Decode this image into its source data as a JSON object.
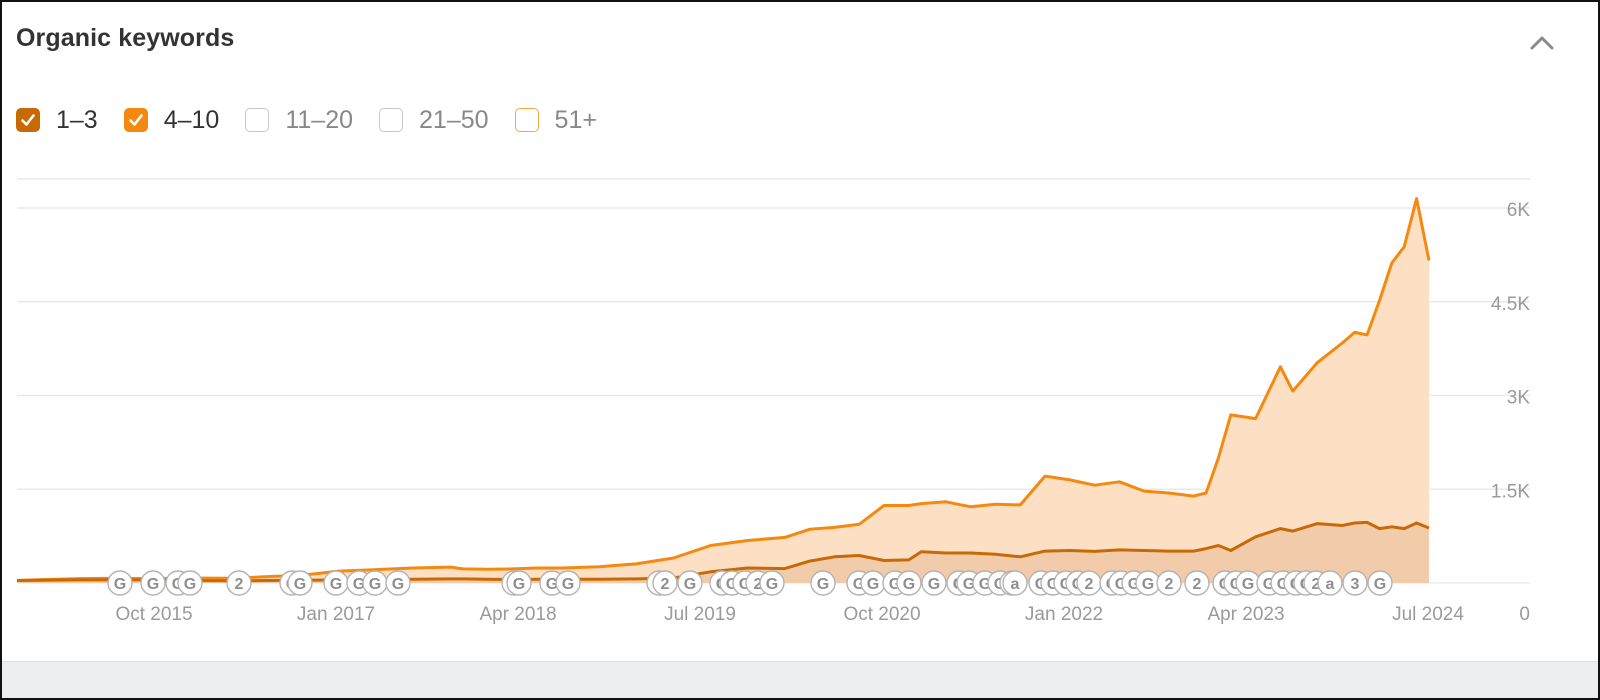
{
  "header": {
    "title": "Organic keywords"
  },
  "icons": {
    "collapse": "chevron-up-icon",
    "check": "check-icon"
  },
  "filters": [
    {
      "label": "1–3",
      "checked": true,
      "color": "#c76a06",
      "label_color": "#333333"
    },
    {
      "label": "4–10",
      "checked": true,
      "color": "#f5890f",
      "label_color": "#333333"
    },
    {
      "label": "11–20",
      "checked": false,
      "color": "#c8c8c8",
      "label_color": "#888888"
    },
    {
      "label": "21–50",
      "checked": false,
      "color": "#c8c8c8",
      "label_color": "#888888"
    },
    {
      "label": "51+",
      "checked": false,
      "color": "#f5a642",
      "label_color": "#888888"
    }
  ],
  "chart_data": {
    "type": "area",
    "title": "",
    "xlabel": "",
    "ylabel": "",
    "x_ticks": [
      "Oct 2015",
      "Jan 2017",
      "Apr 2018",
      "Jul 2019",
      "Oct 2020",
      "Jan 2022",
      "Apr 2023",
      "Jul 2024"
    ],
    "y_ticks": [
      0,
      1500,
      3000,
      4500,
      6000
    ],
    "y_tick_labels": [
      "0",
      "1.5K",
      "3K",
      "4.5K",
      "6K"
    ],
    "ylim": [
      0,
      6000
    ],
    "xlim": [
      "2015-01",
      "2024-07"
    ],
    "grid": true,
    "stacked": true,
    "colors": {
      "pos_1_3": "#c76a06",
      "pos_4_10": "#f5890f",
      "fill_1_3": "#f2ccaa",
      "fill_4_10": "#fde0c3"
    },
    "series": [
      {
        "name": "1–3",
        "x": [
          "2015-01",
          "2015-03",
          "2015-06",
          "2015-09",
          "2015-12",
          "2016-03",
          "2016-06",
          "2016-09",
          "2016-12",
          "2017-03",
          "2017-06",
          "2017-09",
          "2017-12",
          "2018-01",
          "2018-03",
          "2018-05",
          "2018-07",
          "2018-09",
          "2018-12",
          "2019-03",
          "2019-06",
          "2019-09",
          "2019-12",
          "2020-03",
          "2020-05",
          "2020-07",
          "2020-09",
          "2020-11",
          "2021-01",
          "2021-02",
          "2021-04",
          "2021-06",
          "2021-08",
          "2021-10",
          "2021-12",
          "2022-02",
          "2022-04",
          "2022-06",
          "2022-08",
          "2022-10",
          "2022-12",
          "2023-01",
          "2023-02",
          "2023-03",
          "2023-05",
          "2023-07",
          "2023-08",
          "2023-10",
          "2023-12",
          "2024-01",
          "2024-02",
          "2024-03",
          "2024-04",
          "2024-05",
          "2024-06",
          "2024-07"
        ],
        "y": [
          40,
          45,
          50,
          50,
          50,
          40,
          35,
          40,
          45,
          50,
          55,
          60,
          65,
          65,
          60,
          55,
          60,
          60,
          60,
          65,
          80,
          180,
          240,
          230,
          350,
          420,
          440,
          360,
          370,
          500,
          480,
          480,
          460,
          420,
          510,
          520,
          505,
          530,
          520,
          510,
          510,
          550,
          600,
          520,
          740,
          870,
          830,
          950,
          920,
          960,
          970,
          870,
          900,
          870,
          960,
          880
        ]
      },
      {
        "name": "4–10",
        "x": [
          "2015-01",
          "2015-03",
          "2015-06",
          "2015-09",
          "2015-12",
          "2016-03",
          "2016-06",
          "2016-09",
          "2016-12",
          "2017-03",
          "2017-06",
          "2017-09",
          "2017-12",
          "2018-01",
          "2018-03",
          "2018-05",
          "2018-07",
          "2018-09",
          "2018-12",
          "2019-03",
          "2019-06",
          "2019-09",
          "2019-12",
          "2020-03",
          "2020-05",
          "2020-07",
          "2020-09",
          "2020-11",
          "2021-01",
          "2021-02",
          "2021-04",
          "2021-06",
          "2021-08",
          "2021-10",
          "2021-12",
          "2022-02",
          "2022-04",
          "2022-06",
          "2022-08",
          "2022-10",
          "2022-12",
          "2023-01",
          "2023-02",
          "2023-03",
          "2023-05",
          "2023-07",
          "2023-08",
          "2023-10",
          "2023-12",
          "2024-01",
          "2024-02",
          "2024-03",
          "2024-04",
          "2024-05",
          "2024-06",
          "2024-07"
        ],
        "y": [
          0,
          10,
          20,
          25,
          20,
          40,
          40,
          60,
          80,
          140,
          160,
          180,
          190,
          160,
          160,
          170,
          180,
          180,
          200,
          240,
          320,
          420,
          440,
          500,
          510,
          470,
          500,
          880,
          870,
          770,
          820,
          740,
          800,
          830,
          1200,
          1130,
          1060,
          1090,
          950,
          930,
          880,
          890,
          1400,
          2170,
          1890,
          2590,
          2240,
          2580,
          2920,
          3050,
          3000,
          3650,
          4220,
          4510,
          5190,
          4280
        ]
      }
    ],
    "annotation_markers": [
      "G",
      "G",
      "G",
      "G",
      "2",
      "G",
      "G",
      "G",
      "G",
      "G",
      "G",
      "G",
      "G",
      "G",
      "G",
      "G",
      "2",
      "G",
      "G",
      "G",
      "G",
      "2",
      "G",
      "G",
      "G",
      "G",
      "G",
      "G",
      "G",
      "G",
      "G",
      "G",
      "G",
      "G",
      "a",
      "G",
      "G",
      "G",
      "G",
      "2",
      "G",
      "G",
      "G",
      "G",
      "2",
      "2",
      "G",
      "G",
      "G",
      "G",
      "G",
      "G",
      "G",
      "2",
      "a",
      "3",
      "G"
    ]
  }
}
